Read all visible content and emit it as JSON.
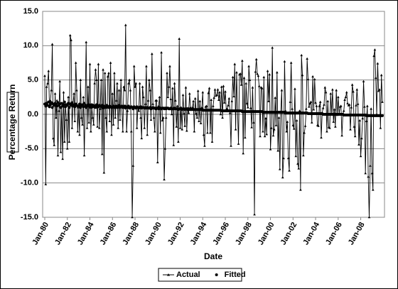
{
  "chart_data": {
    "type": "line",
    "x_label": "Date",
    "y_label": "Percentage Return",
    "legend": "bottom",
    "grid": true,
    "ylim": [
      -15,
      15
    ],
    "yticks": [
      {
        "value": -15,
        "label": "-15.0"
      },
      {
        "value": -10,
        "label": "-10.0"
      },
      {
        "value": -5,
        "label": "-5.0"
      },
      {
        "value": 0,
        "label": "0.0"
      },
      {
        "value": 5,
        "label": "5.0"
      },
      {
        "value": 10,
        "label": "10.0"
      },
      {
        "value": 15,
        "label": "15.0"
      }
    ],
    "categories": [
      "Jan-80",
      null,
      null,
      null,
      null,
      null,
      null,
      null,
      null,
      null,
      null,
      null,
      null,
      null,
      null,
      null,
      null,
      null,
      null,
      null,
      null,
      null,
      null,
      null,
      "Jan-82",
      null,
      null,
      null,
      null,
      null,
      null,
      null,
      null,
      null,
      null,
      null,
      null,
      null,
      null,
      null,
      null,
      null,
      null,
      null,
      null,
      null,
      null,
      null,
      "Jan-84",
      null,
      null,
      null,
      null,
      null,
      null,
      null,
      null,
      null,
      null,
      null,
      null,
      null,
      null,
      null,
      null,
      null,
      null,
      null,
      null,
      null,
      null,
      null,
      "Jan-86",
      null,
      null,
      null,
      null,
      null,
      null,
      null,
      null,
      null,
      null,
      null,
      null,
      null,
      null,
      null,
      null,
      null,
      null,
      null,
      null,
      null,
      null,
      null,
      "Jan-88",
      null,
      null,
      null,
      null,
      null,
      null,
      null,
      null,
      null,
      null,
      null,
      null,
      null,
      null,
      null,
      null,
      null,
      null,
      null,
      null,
      null,
      null,
      null,
      "Jan-90",
      null,
      null,
      null,
      null,
      null,
      null,
      null,
      null,
      null,
      null,
      null,
      null,
      null,
      null,
      null,
      null,
      null,
      null,
      null,
      null,
      null,
      null,
      null,
      "Jan-92",
      null,
      null,
      null,
      null,
      null,
      null,
      null,
      null,
      null,
      null,
      null,
      null,
      null,
      null,
      null,
      null,
      null,
      null,
      null,
      null,
      null,
      null,
      null,
      "Jan-94",
      null,
      null,
      null,
      null,
      null,
      null,
      null,
      null,
      null,
      null,
      null,
      null,
      null,
      null,
      null,
      null,
      null,
      null,
      null,
      null,
      null,
      null,
      null,
      "Jan-96",
      null,
      null,
      null,
      null,
      null,
      null,
      null,
      null,
      null,
      null,
      null,
      null,
      null,
      null,
      null,
      null,
      null,
      null,
      null,
      null,
      null,
      null,
      null,
      "Jan-98",
      null,
      null,
      null,
      null,
      null,
      null,
      null,
      null,
      null,
      null,
      null,
      null,
      null,
      null,
      null,
      null,
      null,
      null,
      null,
      null,
      null,
      null,
      null,
      "Jan-00",
      null,
      null,
      null,
      null,
      null,
      null,
      null,
      null,
      null,
      null,
      null,
      null,
      null,
      null,
      null,
      null,
      null,
      null,
      null,
      null,
      null,
      null,
      null,
      "Jan-02",
      null,
      null,
      null,
      null,
      null,
      null,
      null,
      null,
      null,
      null,
      null,
      null,
      null,
      null,
      null,
      null,
      null,
      null,
      null,
      null,
      null,
      null,
      null,
      "Jan-04",
      null,
      null,
      null,
      null,
      null,
      null,
      null,
      null,
      null,
      null,
      null,
      null,
      null,
      null,
      null,
      null,
      null,
      null,
      null,
      null,
      null,
      null,
      null,
      "Jan-06",
      null,
      null,
      null,
      null,
      null,
      null,
      null,
      null,
      null,
      null,
      null,
      null,
      null,
      null,
      null,
      null,
      null,
      null,
      null,
      null,
      null,
      null,
      null,
      "Jan-08",
      null,
      null,
      null,
      null,
      null,
      null,
      null,
      null,
      null,
      null,
      null,
      null,
      null,
      null,
      null,
      null,
      null,
      null,
      null,
      null,
      null,
      null,
      null
    ],
    "series": [
      {
        "name": "Actual",
        "color": "#000000",
        "marker": "triangle",
        "values": [
          5.6,
          -10.2,
          4.0,
          4.5,
          6.3,
          1.2,
          2.0,
          3.5,
          10.2,
          -3.5,
          -4.5,
          3.0,
          -0.5,
          2.0,
          -6.0,
          0.5,
          4.8,
          -5.5,
          1.2,
          -6.5,
          3.2,
          -4.0,
          1.5,
          -0.8,
          -5.0,
          2.5,
          -4.0,
          11.5,
          10.8,
          -2.0,
          1.5,
          3.0,
          -1.0,
          7.5,
          3.5,
          -2.5,
          1.0,
          -3.0,
          5.0,
          -0.5,
          -1.5,
          2.5,
          -6.0,
          1.5,
          10.5,
          -2.0,
          4.0,
          -1.2,
          7.3,
          -2.5,
          1.0,
          -0.5,
          -1.5,
          4.5,
          6.5,
          5.0,
          -1.8,
          7.3,
          -2.0,
          0.8,
          5.0,
          -5.8,
          6.5,
          -8.5,
          6.0,
          -0.5,
          -2.5,
          5.5,
          6.0,
          -1.0,
          7.5,
          -3.0,
          3.0,
          -1.5,
          6.0,
          -0.5,
          2.0,
          4.5,
          -2.0,
          3.5,
          -0.8,
          5.0,
          1.0,
          -2.5,
          4.0,
          3.5,
          13.0,
          -2.5,
          0.5,
          4.5,
          5.0,
          3.5,
          -2.5,
          -15.0,
          -7.5,
          7.0,
          4.0,
          4.5,
          -2.0,
          1.0,
          0.5,
          4.5,
          -0.5,
          -3.5,
          4.0,
          2.5,
          -2.0,
          1.5,
          7.0,
          -3.0,
          2.0,
          5.0,
          3.5,
          -0.8,
          8.8,
          1.5,
          -0.5,
          -2.5,
          2.0,
          2.0,
          -7.0,
          1.2,
          2.5,
          -2.7,
          9.0,
          -0.9,
          -0.5,
          -9.5,
          -5.0,
          -0.5,
          6.0,
          2.5,
          4.0,
          7.0,
          2.2,
          0.0,
          3.8,
          -4.5,
          4.5,
          2.0,
          -1.8,
          1.2,
          -4.0,
          11.0,
          -2.0,
          1.0,
          -2.2,
          2.8,
          0.1,
          -1.7,
          3.9,
          -2.4,
          0.9,
          0.2,
          3.0,
          1.0,
          0.7,
          1.0,
          1.9,
          -2.5,
          2.3,
          0.1,
          -0.5,
          3.4,
          -1.0,
          1.9,
          -1.3,
          1.0,
          3.2,
          -3.0,
          -4.6,
          1.1,
          1.2,
          -2.7,
          3.1,
          3.8,
          -2.7,
          2.1,
          -4.0,
          1.2,
          2.4,
          3.6,
          2.7,
          2.8,
          3.6,
          2.1,
          3.2,
          0.0,
          4.0,
          -0.5,
          4.1,
          1.7,
          3.3,
          0.7,
          0.8,
          1.3,
          2.3,
          0.2,
          -4.6,
          1.9,
          5.4,
          2.6,
          7.3,
          -2.2,
          6.1,
          0.6,
          -4.3,
          5.8,
          5.9,
          4.3,
          7.8,
          -5.7,
          5.3,
          -3.4,
          4.5,
          1.6,
          1.0,
          7.0,
          5.0,
          0.9,
          -1.9,
          3.9,
          -1.2,
          -14.6,
          6.2,
          8.0,
          5.9,
          5.6,
          4.1,
          -3.2,
          3.9,
          3.8,
          -2.5,
          5.4,
          -3.2,
          -0.6,
          -2.9,
          6.3,
          1.9,
          5.8,
          -5.1,
          -2.0,
          9.7,
          -3.1,
          -2.2,
          2.4,
          -1.6,
          6.1,
          -5.3,
          -0.5,
          -8.0,
          0.4,
          3.5,
          -9.2,
          -6.4,
          7.7,
          0.5,
          -2.5,
          -1.1,
          -6.4,
          -8.2,
          1.8,
          7.5,
          0.8,
          -1.6,
          -2.1,
          3.7,
          -6.1,
          -0.9,
          -7.2,
          -7.9,
          0.5,
          -11.0,
          8.6,
          5.7,
          -6.0,
          -2.7,
          -1.7,
          0.8,
          8.1,
          5.1,
          1.1,
          1.6,
          1.8,
          -1.2,
          5.5,
          0.7,
          5.1,
          1.7,
          1.2,
          -1.6,
          -1.7,
          1.2,
          1.8,
          -3.4,
          0.2,
          0.9,
          1.4,
          3.9,
          3.2,
          -2.5,
          1.9,
          -1.9,
          -2.0,
          3.0,
          0.0,
          3.6,
          -1.1,
          0.7,
          -1.8,
          3.5,
          -0.1,
          2.5,
          0.0,
          1.1,
          1.2,
          -3.1,
          0.0,
          0.5,
          2.1,
          2.5,
          3.2,
          1.6,
          1.3,
          1.4,
          -2.2,
          1.0,
          4.3,
          3.3,
          -1.8,
          -3.2,
          1.3,
          3.6,
          1.5,
          -4.4,
          -0.9,
          -6.1,
          -3.5,
          -0.6,
          4.8,
          1.1,
          -8.6,
          -1.0,
          1.2,
          -9.1,
          -15.0,
          -7.5,
          0.8,
          -8.6,
          -11.0,
          8.5,
          9.4,
          5.3,
          0.0,
          7.4,
          3.4,
          3.6,
          -2.0,
          5.7,
          1.8
        ]
      },
      {
        "name": "Fitted",
        "color": "#000000",
        "marker": "dot",
        "line": false,
        "values": [
          1.5,
          1.2,
          1.6,
          1.3,
          1.8,
          1.1,
          1.4,
          1.7,
          1.0,
          1.5,
          1.3,
          1.6,
          1.4,
          1.2,
          1.7,
          1.3,
          1.5,
          1.0,
          1.6,
          1.2,
          1.4,
          1.8,
          1.1,
          1.4,
          1.3,
          1.6,
          1.0,
          1.5,
          1.3,
          1.7,
          1.2,
          1.4,
          1.1,
          1.5,
          1.3,
          1.2,
          1.2,
          1.5,
          1.0,
          1.3,
          1.4,
          1.1,
          1.6,
          1.2,
          1.0,
          1.3,
          1.2,
          1.4,
          1.2,
          1.0,
          1.4,
          1.1,
          1.3,
          1.2,
          1.0,
          1.4,
          1.2,
          1.1,
          1.3,
          1.2,
          1.1,
          1.3,
          0.9,
          1.2,
          1.1,
          1.0,
          1.3,
          1.1,
          1.0,
          1.2,
          1.1,
          1.0,
          1.1,
          1.2,
          1.0,
          1.1,
          1.2,
          1.0,
          1.1,
          1.3,
          1.0,
          1.1,
          1.2,
          1.0,
          1.0,
          1.2,
          0.9,
          1.1,
          1.0,
          1.2,
          0.9,
          1.0,
          1.1,
          1.0,
          0.8,
          1.1,
          1.0,
          0.9,
          1.1,
          1.0,
          0.9,
          1.0,
          1.1,
          0.9,
          1.0,
          1.0,
          0.9,
          1.0,
          0.9,
          1.0,
          0.9,
          0.9,
          1.0,
          0.8,
          0.9,
          1.0,
          0.9,
          0.9,
          0.8,
          0.9,
          0.9,
          0.8,
          0.9,
          0.9,
          0.8,
          0.9,
          0.9,
          0.8,
          0.9,
          0.8,
          0.9,
          0.9,
          0.8,
          0.8,
          0.9,
          0.8,
          0.8,
          0.8,
          0.9,
          0.8,
          0.8,
          0.8,
          0.7,
          0.8,
          0.8,
          0.8,
          0.7,
          0.8,
          0.8,
          0.7,
          0.8,
          0.8,
          0.7,
          0.8,
          0.7,
          0.7,
          0.7,
          0.7,
          0.7,
          0.7,
          0.7,
          0.7,
          0.7,
          0.7,
          0.7,
          0.7,
          0.7,
          0.7,
          0.6,
          0.6,
          0.6,
          0.6,
          0.6,
          0.6,
          0.6,
          0.6,
          0.6,
          0.6,
          0.6,
          0.6,
          0.6,
          0.6,
          0.6,
          0.6,
          0.6,
          0.6,
          0.6,
          0.6,
          0.5,
          0.5,
          0.5,
          0.5,
          0.5,
          0.5,
          0.5,
          0.5,
          0.5,
          0.5,
          0.5,
          0.5,
          0.5,
          0.5,
          0.5,
          0.5,
          0.5,
          0.5,
          0.5,
          0.5,
          0.5,
          0.5,
          0.4,
          0.4,
          0.4,
          0.4,
          0.4,
          0.4,
          0.4,
          0.4,
          0.4,
          0.4,
          0.4,
          0.4,
          0.4,
          0.4,
          0.4,
          0.4,
          0.4,
          0.4,
          0.4,
          0.4,
          0.4,
          0.4,
          0.3,
          0.3,
          0.3,
          0.3,
          0.3,
          0.3,
          0.3,
          0.3,
          0.3,
          0.3,
          0.3,
          0.3,
          0.3,
          0.3,
          0.3,
          0.3,
          0.3,
          0.3,
          0.3,
          0.3,
          0.3,
          0.3,
          0.3,
          0.3,
          0.2,
          0.2,
          0.2,
          0.2,
          0.2,
          0.2,
          0.2,
          0.2,
          0.2,
          0.2,
          0.2,
          0.2,
          0.2,
          0.2,
          0.2,
          0.2,
          0.2,
          0.2,
          0.2,
          0.2,
          0.2,
          0.2,
          0.2,
          0.2,
          0.1,
          0.1,
          0.1,
          0.1,
          0.1,
          0.1,
          0.1,
          0.1,
          0.1,
          0.1,
          0.1,
          0.1,
          0.1,
          0.1,
          0.1,
          0.1,
          0.0,
          0.0,
          0.0,
          0.0,
          0.0,
          0.0,
          0.0,
          0.0,
          0.0,
          0.0,
          0.0,
          0.0,
          0.0,
          0.0,
          0.0,
          0.0,
          0.0,
          0.0,
          0.0,
          0.0,
          0.0,
          0.0,
          -0.1,
          -0.1,
          -0.1,
          -0.1,
          -0.1,
          -0.1,
          -0.1,
          -0.1,
          -0.1,
          -0.1,
          -0.1,
          -0.1,
          -0.1,
          -0.1,
          -0.1,
          -0.1,
          -0.1,
          -0.1,
          -0.1,
          -0.1,
          -0.1,
          -0.1,
          -0.1,
          -0.1,
          -0.2,
          -0.2,
          -0.2,
          -0.2,
          -0.2,
          -0.2,
          -0.2,
          -0.2,
          -0.2,
          -0.2,
          -0.2,
          -0.2,
          -0.2,
          -0.2,
          -0.2,
          -0.2,
          -0.2,
          -0.2
        ]
      }
    ]
  }
}
